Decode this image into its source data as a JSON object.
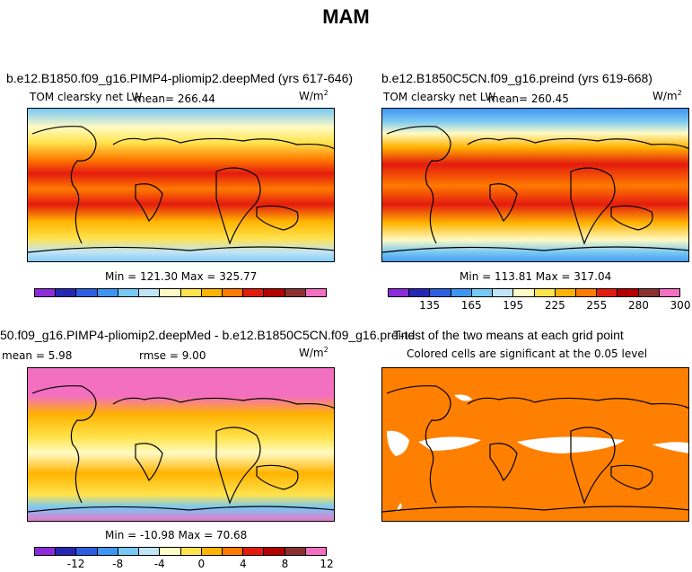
{
  "suptitle": "MAM",
  "colors": {
    "scale": [
      "#8c2bd9",
      "#2626b4",
      "#2d5ee0",
      "#3f96f2",
      "#78c8f5",
      "#c0e4f8",
      "#fffbc4",
      "#ffe34d",
      "#ffb300",
      "#ff7a00",
      "#e41b0f",
      "#b30000",
      "#8b3030",
      "#f36fc0"
    ],
    "continent": "#000000",
    "significance": "#ff7f00"
  },
  "chart_data": [
    {
      "type": "heatmap",
      "title": "b.e12.B1850.f09_g16.PIMP4-pliomip2.deepMed (yrs 617-646)",
      "variable": "TOM clearsky net LW",
      "mean_label": "mean= 266.44",
      "units": "W/m",
      "units_exp": "2",
      "minmax": "Min = 121.30 Max = 325.77",
      "min": 121.3,
      "max": 325.77,
      "mean": 266.44
    },
    {
      "type": "heatmap",
      "title": "b.e12.B1850C5CN.f09_g16.preind (yrs 619-668)",
      "variable": "TOM clearsky net LW",
      "mean_label": "mean= 260.45",
      "units": "W/m",
      "units_exp": "2",
      "minmax": "Min = 113.81 Max = 317.04",
      "min": 113.81,
      "max": 317.04,
      "mean": 260.45,
      "colorbar_ticks": [
        "135",
        "165",
        "195",
        "225",
        "255",
        "280",
        "300"
      ]
    },
    {
      "type": "heatmap",
      "title": "50.f09_g16.PIMP4-pliomip2.deepMed - b.e12.B1850C5CN.f09_g16.preind",
      "mean_label": "mean =    5.98",
      "rmse_label": "rmse =    9.00",
      "units": "W/m",
      "units_exp": "2",
      "minmax": "Min = -10.98 Max =  70.68",
      "min": -10.98,
      "max": 70.68,
      "mean": 5.98,
      "rmse": 9.0,
      "colorbar_ticks": [
        "-12",
        "-8",
        "-4",
        "0",
        "4",
        "8",
        "12"
      ]
    },
    {
      "type": "heatmap",
      "title": "T-test of the two means at each grid point",
      "subtitle": "Colored cells are significant at the 0.05 level"
    }
  ]
}
